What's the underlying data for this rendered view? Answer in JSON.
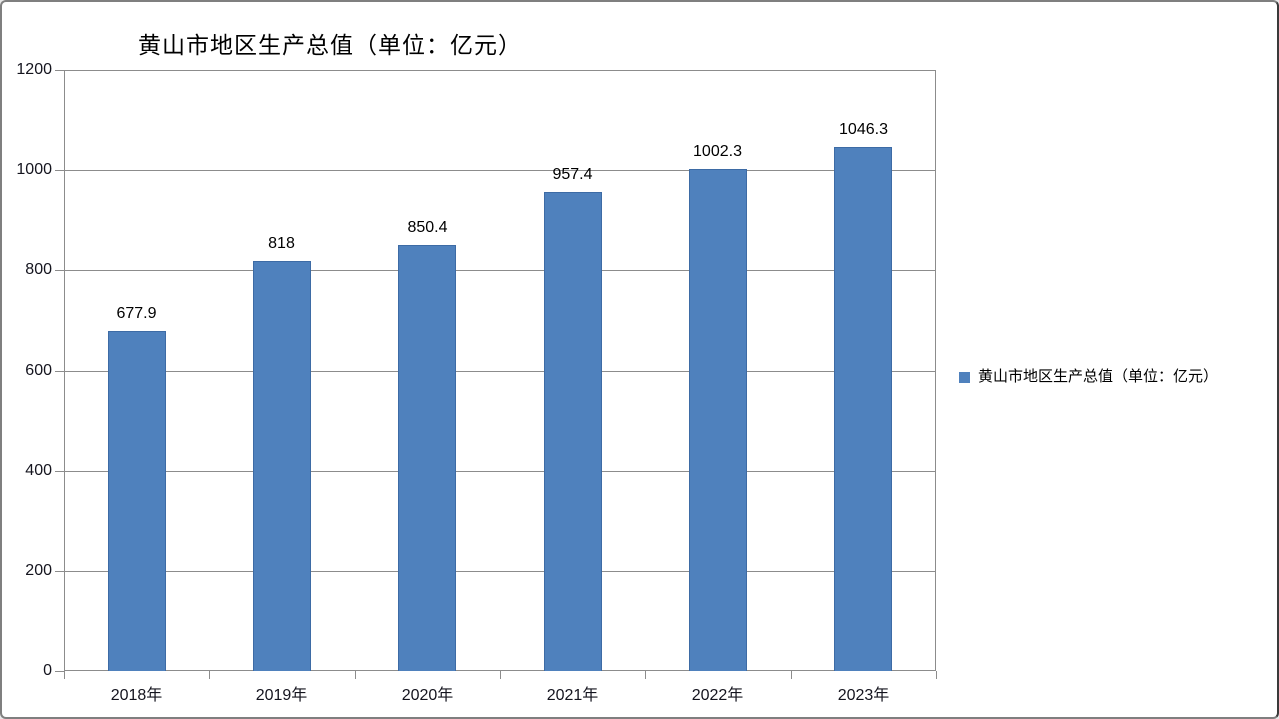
{
  "window": {
    "background": "#ffffff",
    "frame_border_color": "#7f7f7f"
  },
  "chart_data": {
    "type": "bar",
    "title": "黄山市地区生产总值（单位：亿元）",
    "categories": [
      "2018年",
      "2019年",
      "2020年",
      "2021年",
      "2022年",
      "2023年"
    ],
    "values": [
      677.9,
      818,
      850.4,
      957.4,
      1002.3,
      1046.3
    ],
    "data_labels": [
      "677.9",
      "818",
      "850.4",
      "957.4",
      "1002.3",
      "1046.3"
    ],
    "series_name": "黄山市地区生产总值（单位：亿元）",
    "xlabel": "",
    "ylabel": "",
    "ylim": [
      0,
      1200
    ],
    "yticks": [
      0,
      200,
      400,
      600,
      800,
      1000,
      1200
    ],
    "grid": true,
    "legend_position": "right",
    "colors": {
      "bar_fill": "#4F81BD",
      "bar_border": "#3D6BA5",
      "gridline": "#8C8C8C",
      "axis": "#8C8C8C",
      "text": "#000000"
    }
  },
  "legend": {
    "swatch_color": "#4F81BD",
    "label": "黄山市地区生产总值（单位：亿元）"
  }
}
